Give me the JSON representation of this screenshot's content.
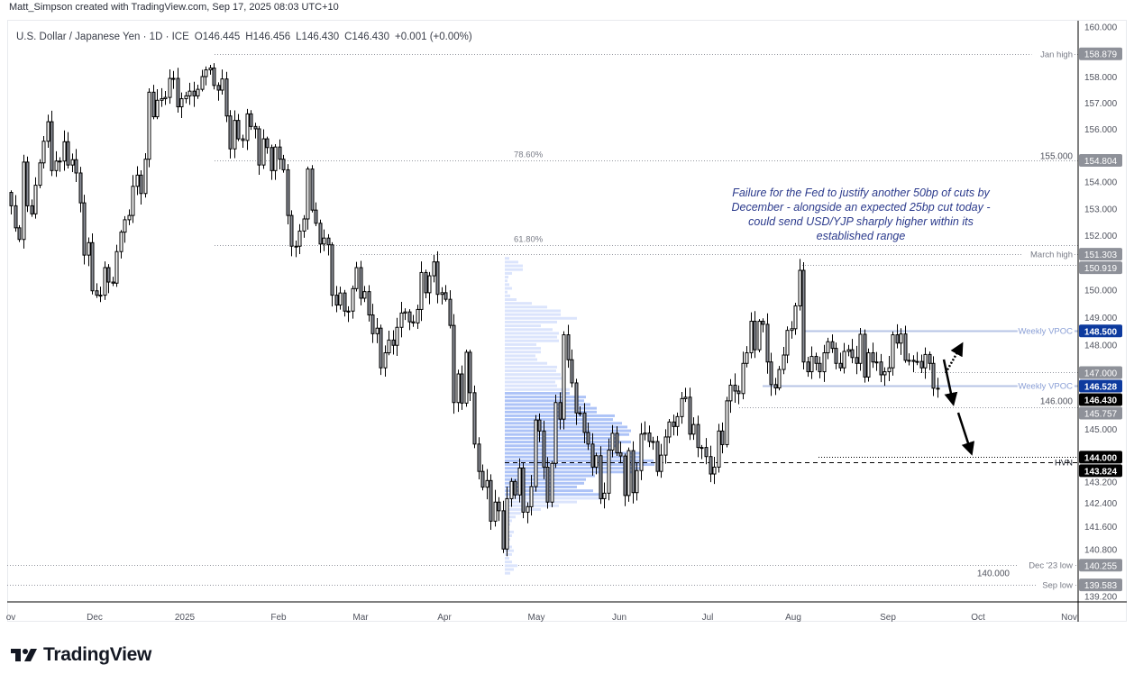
{
  "credit": "Matt_Simpson created with TradingView.com, Sep 17, 2025 08:03 UTC+10",
  "legend": {
    "symbol": "U.S. Dollar / Japanese Yen · 1D · ICE",
    "open": "O146.445",
    "high": "H146.456",
    "low": "L146.430",
    "close": "C146.430",
    "change": "+0.001 (+0.00%)"
  },
  "annotation": "Failure for the Fed to justify another 50bp of cuts by December - alongside an expected 25bp cut today - could send USD/YJP sharply higher within its established range",
  "logo": "TradingView",
  "colors": {
    "up_fill": "#ffffff",
    "down_fill": "#8c8f99",
    "outline": "#000000",
    "vpoc": "#b7c4e6",
    "vp_light": "#dbe4fc",
    "vp_value": "#adc3f7",
    "badge_gray": "#8e9199",
    "badge_blue": "#0d3a9e",
    "badge_black": "#000000"
  },
  "chart_data": {
    "type": "candlestick",
    "symbol": "USD/JPY",
    "interval": "1D",
    "y_scale": "log",
    "ylim": [
      139.0,
      160.0
    ],
    "x_tick_labels": [
      "ov",
      "Dec",
      "2025",
      "Feb",
      "Mar",
      "Apr",
      "May",
      "Jun",
      "Jul",
      "Aug",
      "Sep",
      "Oct",
      "Nov"
    ],
    "y_tick_labels": [
      "160.000",
      "158.000",
      "157.000",
      "156.000",
      "155.000",
      "154.000",
      "153.000",
      "152.000",
      "150.000",
      "149.000",
      "148.000",
      "146.000",
      "145.000",
      "143.200",
      "142.400",
      "141.600",
      "140.800",
      "140.000",
      "139.200"
    ],
    "closes": [
      153.1,
      152.28,
      151.85,
      154.74,
      153.1,
      152.8,
      153.87,
      154.71,
      155.53,
      156.27,
      154.42,
      154.78,
      154.78,
      155.51,
      154.63,
      154.83,
      154.33,
      153.21,
      151.27,
      151.73,
      149.96,
      149.8,
      149.8,
      150.81,
      150.28,
      150.24,
      151.4,
      152.12,
      152.58,
      152.74,
      153.83,
      154.25,
      153.56,
      154.85,
      157.4,
      156.46,
      157.09,
      157.15,
      157.2,
      157.93,
      157.93,
      156.84,
      157.15,
      157.26,
      157.44,
      157.26,
      157.51,
      158.0,
      158.26,
      158.33,
      157.66,
      157.48,
      157.91,
      156.49,
      155.24,
      156.32,
      155.62,
      155.56,
      156.57,
      156.09,
      156.0,
      154.63,
      155.62,
      155.29,
      154.42,
      155.31,
      154.85,
      154.45,
      152.74,
      151.6,
      151.6,
      152.16,
      152.61,
      154.48,
      152.94,
      152.45,
      151.68,
      151.9,
      151.65,
      149.8,
      149.44,
      149.88,
      149.22,
      149.22,
      150.04,
      150.81,
      149.69,
      149.93,
      149.08,
      148.4,
      148.6,
      147.17,
      147.71,
      148.17,
      147.98,
      148.63,
      149.15,
      149.19,
      148.83,
      148.79,
      149.28,
      150.63,
      149.89,
      150.51,
      151.02,
      149.83,
      149.89,
      149.65,
      148.7,
      145.93,
      146.95,
      145.91,
      147.73,
      146.28,
      144.46,
      143.5,
      142.95,
      143.18,
      141.77,
      142.43,
      142.13,
      140.81,
      142.55,
      143.15,
      142.68,
      143.62,
      142.08,
      142.27,
      142.97,
      145.31,
      144.92,
      143.65,
      142.43,
      143.78,
      145.93,
      145.34,
      148.36,
      147.46,
      146.63,
      145.56,
      145.56,
      144.87,
      144.46,
      143.65,
      144.05,
      142.55,
      142.74,
      144.25,
      144.84,
      144.15,
      144.04,
      142.66,
      144.23,
      142.76,
      143.53,
      144.81,
      144.85,
      144.55,
      144.55,
      143.5,
      144.07,
      144.71,
      145.24,
      145.08,
      145.43,
      146.07,
      146.12,
      144.81,
      145.15,
      144.34,
      144.34,
      144.02,
      143.41,
      143.65,
      144.92,
      144.44,
      145.99,
      146.55,
      146.34,
      146.25,
      147.33,
      147.71,
      148.85,
      147.82,
      148.85,
      148.74,
      147.38,
      146.57,
      146.45,
      147.11,
      147.63,
      148.52,
      148.58,
      149.41,
      150.71,
      147.38,
      147.03,
      147.58,
      147.33,
      147.03,
      147.71,
      148.11,
      147.87,
      147.33,
      147.17,
      147.76,
      147.82,
      147.54,
      147.33,
      148.38,
      146.84,
      147.71,
      147.38,
      147.38,
      146.92,
      147.03,
      147.17,
      148.36,
      148.06,
      148.39,
      147.44,
      147.44,
      147.4,
      147.4,
      147.17,
      147.65,
      147.33,
      146.44,
      146.43
    ],
    "volume_profile": {
      "price_range": [
        151.2,
        139.9
      ],
      "relative_volume": [
        5,
        15,
        20,
        20,
        8,
        4,
        3,
        5,
        8,
        3,
        6,
        13,
        30,
        47,
        62,
        62,
        80,
        58,
        40,
        53,
        60,
        58,
        60,
        35,
        40,
        40,
        34,
        36,
        47,
        58,
        57,
        62,
        63,
        56,
        58,
        72,
        72,
        90,
        88,
        95,
        102,
        102,
        122,
        120,
        130,
        136,
        140,
        138,
        125,
        140,
        126,
        118,
        150,
        150,
        165,
        166,
        150,
        145,
        100,
        90,
        88,
        80,
        98,
        110,
        108,
        80,
        60,
        40,
        18,
        12,
        8,
        6,
        5,
        10,
        8,
        6,
        5,
        8,
        10,
        8,
        5,
        8,
        14,
        10,
        6
      ],
      "value_area": [
        142.7,
        146.4
      ]
    },
    "levels": [
      {
        "price": 158.879,
        "label": "Jan high",
        "badge": "158.879",
        "badge_color": "gray",
        "style": "dotted"
      },
      {
        "price": 154.804,
        "label": "78.60%",
        "badge": "154.804",
        "badge_color": "gray",
        "style": "dotted"
      },
      {
        "price": 151.63,
        "label": "61.80%",
        "badge": "",
        "badge_color": "",
        "style": "dotted"
      },
      {
        "price": 151.303,
        "label": "March high",
        "badge": "151.303",
        "badge_color": "gray",
        "style": "dotted"
      },
      {
        "price": 150.919,
        "label": "",
        "badge": "150.919",
        "badge_color": "gray",
        "style": "dotted"
      },
      {
        "price": 148.5,
        "label": "Weekly VPOC",
        "badge": "148.500",
        "badge_color": "blue",
        "style": "solid-blue"
      },
      {
        "price": 147.0,
        "label": "",
        "badge": "147.000",
        "badge_color": "gray",
        "style": "dotted"
      },
      {
        "price": 146.528,
        "label": "Weekly VPOC",
        "badge": "146.528",
        "badge_color": "blue",
        "style": "solid-blue"
      },
      {
        "price": 146.43,
        "label": "",
        "badge": "146.430",
        "badge_color": "black",
        "style": "none"
      },
      {
        "price": 145.757,
        "label": "",
        "badge": "145.757",
        "badge_color": "gray",
        "style": "dotted"
      },
      {
        "price": 144.0,
        "label": "",
        "badge": "144.000",
        "badge_color": "black",
        "style": "dotted-dark"
      },
      {
        "price": 143.824,
        "label": "HVN",
        "badge": "143.824",
        "badge_color": "black",
        "style": "dashed"
      },
      {
        "price": 140.255,
        "label": "Dec '23 low",
        "badge": "140.255",
        "badge_color": "gray",
        "style": "dotted"
      },
      {
        "price": 139.583,
        "label": "Sep low",
        "badge": "139.583",
        "badge_color": "gray",
        "style": "dotted"
      }
    ]
  }
}
